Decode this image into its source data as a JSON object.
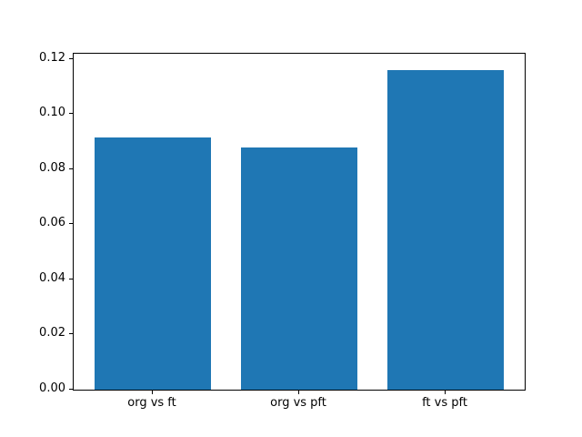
{
  "chart_data": {
    "type": "bar",
    "categories": [
      "org vs ft",
      "org vs pft",
      "ft vs pft"
    ],
    "values": [
      0.0915,
      0.0878,
      0.116
    ],
    "title": "",
    "xlabel": "",
    "ylabel": "",
    "ylim": [
      0,
      0.1218
    ],
    "ytick_values": [
      0.0,
      0.02,
      0.04,
      0.06,
      0.08,
      0.1,
      0.12
    ],
    "ytick_labels": [
      "0.00",
      "0.02",
      "0.04",
      "0.06",
      "0.08",
      "0.10",
      "0.12"
    ],
    "bar_color": "#1f77b4",
    "grid": false,
    "legend": null,
    "bar_relative_width": 0.8
  }
}
